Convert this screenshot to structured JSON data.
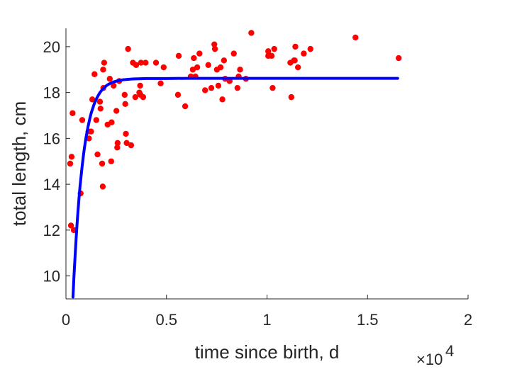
{
  "chart_data": {
    "type": "scatter",
    "xlabel": "time since birth, d",
    "ylabel": "total length, cm",
    "x_exponent_label": {
      "base": "×10",
      "power": "4"
    },
    "xlim": [
      0,
      20000
    ],
    "ylim": [
      9,
      20.8
    ],
    "x_ticks": [
      0,
      5000,
      10000,
      15000,
      20000
    ],
    "x_tick_labels": [
      "0",
      "0.5",
      "1",
      "1.5",
      "2"
    ],
    "y_ticks": [
      10,
      12,
      14,
      16,
      18,
      20
    ],
    "y_tick_labels": [
      "10",
      "12",
      "14",
      "16",
      "18",
      "20"
    ],
    "grid": false,
    "colors": {
      "points": "#ff0000",
      "fit": "#0000ff",
      "axis": "#262626"
    },
    "series": [
      {
        "type": "scatter",
        "x": [
          210,
          250,
          280,
          330,
          390,
          730,
          810,
          1120,
          1140,
          1250,
          1310,
          1420,
          1510,
          1570,
          1690,
          1720,
          1800,
          1830,
          1850,
          1860,
          1900,
          2070,
          2180,
          2250,
          2270,
          2370,
          2510,
          2550,
          2570,
          2650,
          2920,
          2950,
          2980,
          3020,
          3090,
          3240,
          3330,
          3450,
          3490,
          3650,
          3690,
          3710,
          3730,
          3840,
          3960,
          4480,
          4710,
          4860,
          5570,
          5610,
          5930,
          6210,
          6310,
          6360,
          6440,
          6530,
          6640,
          6920,
          7080,
          7230,
          7380,
          7410,
          7510,
          7580,
          7690,
          7780,
          7860,
          7920,
          8140,
          8350,
          8530,
          8590,
          8660,
          8950,
          9220,
          10060,
          10060,
          10230,
          10280,
          10360,
          11160,
          11210,
          11340,
          11380,
          11410,
          11540,
          11830,
          12160,
          14400,
          16550
        ],
        "y": [
          14.9,
          12.2,
          15.2,
          17.1,
          12.0,
          13.6,
          16.8,
          16.3,
          16.0,
          16.3,
          17.7,
          18.8,
          16.8,
          15.3,
          17.6,
          17.3,
          14.9,
          13.9,
          19.0,
          18.2,
          19.3,
          16.6,
          18.6,
          15.0,
          16.7,
          18.3,
          17.2,
          15.6,
          15.8,
          18.5,
          17.9,
          17.5,
          16.2,
          15.8,
          19.9,
          15.7,
          19.3,
          17.8,
          19.2,
          18.0,
          18.3,
          17.9,
          19.3,
          17.8,
          19.3,
          19.3,
          18.4,
          19.1,
          17.9,
          19.6,
          17.4,
          18.7,
          19.0,
          19.5,
          18.7,
          19.1,
          19.7,
          18.1,
          19.2,
          18.2,
          20.1,
          19.9,
          19.0,
          18.3,
          19.1,
          17.7,
          19.4,
          18.6,
          18.5,
          19.7,
          18.2,
          18.7,
          19.0,
          18.6,
          20.6,
          19.8,
          19.6,
          19.6,
          18.2,
          19.9,
          19.3,
          17.8,
          19.4,
          19.4,
          20.0,
          19.1,
          19.7,
          19.9,
          20.4,
          19.5
        ]
      },
      {
        "type": "line",
        "curve": "von Bertalanffy growth fit",
        "x": [
          350,
          400,
          450,
          500,
          550,
          600,
          650,
          700,
          750,
          800,
          850,
          900,
          950,
          1000,
          1050,
          1100,
          1150,
          1200,
          1250,
          1300,
          1400,
          1500,
          1600,
          1700,
          1800,
          1900,
          2000,
          2100,
          2200,
          2400,
          2600,
          2800,
          3000,
          3300,
          3600,
          4000,
          4500,
          5000,
          6000,
          7000,
          8000,
          10000,
          12000,
          14000,
          16500
        ],
        "y": [
          9.08,
          9.99,
          10.81,
          11.55,
          12.23,
          12.84,
          13.39,
          13.89,
          14.34,
          14.75,
          15.12,
          15.46,
          15.76,
          16.04,
          16.29,
          16.52,
          16.72,
          16.91,
          17.08,
          17.23,
          17.49,
          17.7,
          17.87,
          18.01,
          18.12,
          18.21,
          18.29,
          18.35,
          18.4,
          18.47,
          18.52,
          18.55,
          18.57,
          18.59,
          18.6,
          18.61,
          18.61,
          18.61,
          18.62,
          18.62,
          18.62,
          18.62,
          18.62,
          18.62,
          18.62
        ]
      }
    ]
  }
}
